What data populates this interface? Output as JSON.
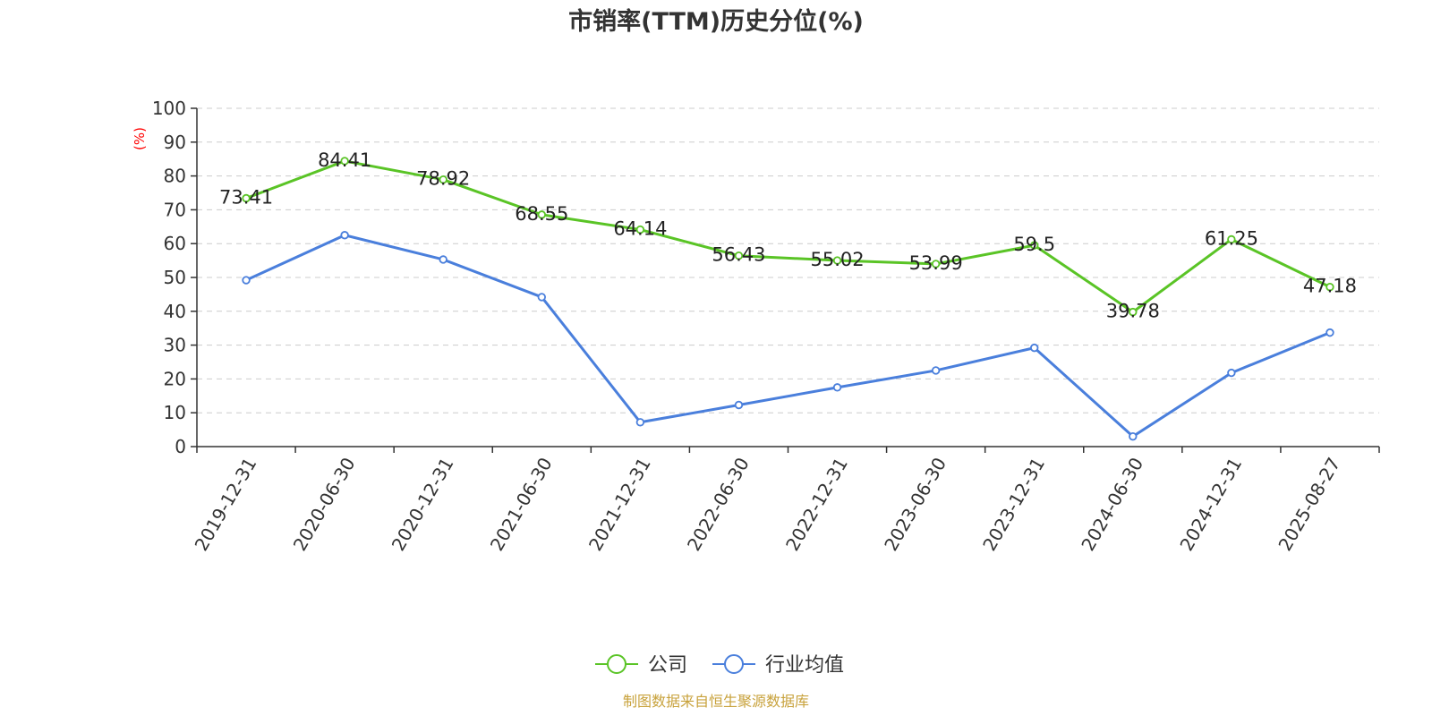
{
  "chart_data": {
    "type": "line",
    "title": "市销率(TTM)历史分位(%)",
    "ylabel": "(%)",
    "xlabel": "",
    "ylim": [
      0,
      100
    ],
    "yticks": [
      0,
      10,
      20,
      30,
      40,
      50,
      60,
      70,
      80,
      90,
      100
    ],
    "grid": true,
    "legend_position": "bottom-center",
    "categories": [
      "2019-12-31",
      "2020-06-30",
      "2020-12-31",
      "2021-06-30",
      "2021-12-31",
      "2022-06-30",
      "2022-12-31",
      "2023-06-30",
      "2023-12-31",
      "2024-06-30",
      "2024-12-31",
      "2025-08-27"
    ],
    "series": [
      {
        "name": "公司",
        "color": "#5ac426",
        "show_labels": true,
        "values": [
          73.41,
          84.41,
          78.92,
          68.55,
          64.14,
          56.43,
          55.02,
          53.99,
          59.5,
          39.78,
          61.25,
          47.18
        ]
      },
      {
        "name": "行业均值",
        "color": "#4a7fdc",
        "show_labels": false,
        "values": [
          49.2,
          62.5,
          55.3,
          44.2,
          7.2,
          12.3,
          17.5,
          22.5,
          29.2,
          3.0,
          21.8,
          33.7
        ]
      }
    ]
  },
  "source_note": "制图数据来自恒生聚源数据库"
}
